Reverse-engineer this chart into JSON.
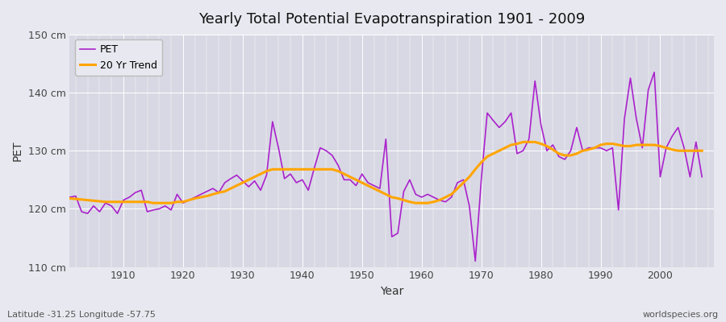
{
  "title": "Yearly Total Potential Evapotranspiration 1901 - 2009",
  "xlabel": "Year",
  "ylabel": "PET",
  "subtitle_left": "Latitude -31.25 Longitude -57.75",
  "subtitle_right": "worldspecies.org",
  "ylim": [
    110,
    150
  ],
  "yticks": [
    110,
    120,
    130,
    140,
    150
  ],
  "ytick_labels": [
    "110 cm",
    "120 cm",
    "130 cm",
    "140 cm",
    "150 cm"
  ],
  "xlim": [
    1901,
    2009
  ],
  "xticks": [
    1910,
    1920,
    1930,
    1940,
    1950,
    1960,
    1970,
    1980,
    1990,
    2000
  ],
  "bg_color": "#e8e8f0",
  "plot_bg_color": "#d8d8e4",
  "line_color_pet": "#aa22cc",
  "line_color_trend": "#ffa500",
  "legend_box_color": "#e8e8f0",
  "pet_values": [
    122.0,
    122.2,
    119.5,
    119.2,
    120.5,
    119.5,
    121.0,
    120.5,
    119.2,
    121.5,
    122.0,
    122.8,
    123.2,
    119.5,
    119.8,
    120.0,
    120.5,
    119.8,
    122.5,
    121.0,
    121.5,
    122.0,
    122.5,
    123.0,
    123.5,
    122.8,
    124.5,
    125.2,
    125.8,
    124.8,
    123.8,
    124.8,
    123.2,
    125.8,
    135.0,
    130.5,
    125.2,
    126.0,
    124.5,
    125.0,
    123.2,
    127.0,
    130.5,
    130.0,
    129.2,
    127.5,
    125.0,
    125.0,
    124.0,
    126.0,
    124.5,
    124.0,
    123.5,
    132.0,
    115.2,
    115.8,
    123.0,
    125.0,
    122.5,
    122.0,
    122.5,
    122.0,
    121.5,
    121.2,
    122.0,
    124.5,
    125.0,
    120.5,
    111.0,
    125.0,
    136.5,
    135.2,
    134.0,
    135.0,
    136.5,
    129.5,
    130.0,
    132.0,
    142.0,
    134.5,
    130.0,
    131.0,
    129.0,
    128.5,
    130.0,
    134.0,
    130.0,
    130.5,
    130.5,
    130.5,
    130.0,
    130.5,
    119.8,
    135.5,
    142.5,
    135.5,
    130.5,
    140.5,
    143.5,
    125.5,
    130.5,
    132.5,
    134.0,
    130.5,
    125.5,
    131.5,
    125.5
  ],
  "trend_values": [
    121.8,
    121.7,
    121.6,
    121.5,
    121.4,
    121.3,
    121.2,
    121.2,
    121.2,
    121.2,
    121.2,
    121.2,
    121.2,
    121.2,
    121.0,
    121.0,
    121.0,
    121.0,
    121.2,
    121.2,
    121.5,
    121.8,
    122.0,
    122.2,
    122.5,
    122.8,
    123.0,
    123.5,
    124.0,
    124.5,
    125.0,
    125.5,
    126.0,
    126.5,
    126.8,
    126.8,
    126.8,
    126.8,
    126.8,
    126.8,
    126.8,
    126.8,
    126.8,
    126.8,
    126.8,
    126.5,
    126.0,
    125.5,
    125.0,
    124.5,
    124.0,
    123.5,
    123.0,
    122.5,
    122.0,
    121.8,
    121.5,
    121.2,
    121.0,
    121.0,
    121.0,
    121.2,
    121.5,
    122.0,
    122.5,
    123.5,
    124.5,
    125.5,
    126.8,
    128.0,
    129.0,
    129.5,
    130.0,
    130.5,
    131.0,
    131.2,
    131.5,
    131.5,
    131.5,
    131.2,
    130.8,
    130.2,
    129.5,
    129.2,
    129.2,
    129.5,
    130.0,
    130.2,
    130.5,
    131.0,
    131.2,
    131.2,
    131.0,
    130.8,
    130.8,
    131.0,
    131.0,
    131.0,
    131.0,
    130.8,
    130.5,
    130.2,
    130.0,
    130.0,
    130.0,
    130.0,
    130.0
  ]
}
